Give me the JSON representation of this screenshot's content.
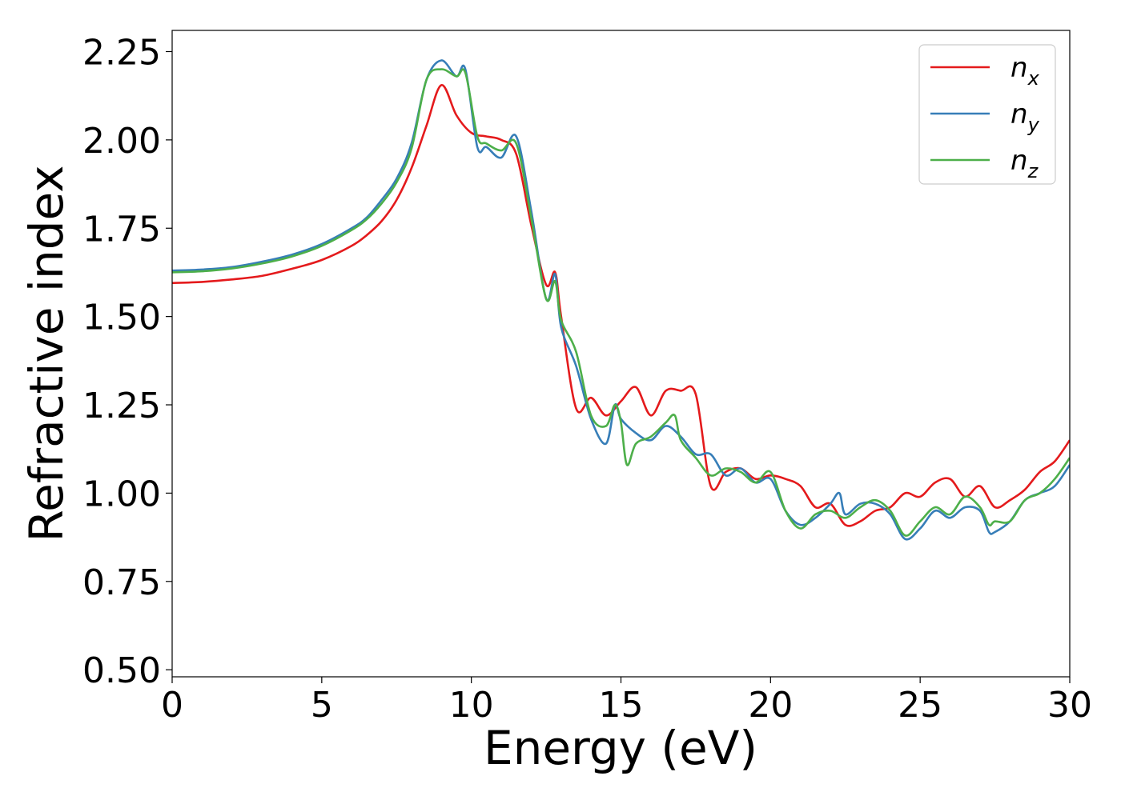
{
  "chart_data": {
    "type": "line",
    "title": "",
    "xlabel": "Energy (eV)",
    "ylabel": "Refractive index",
    "xlim": [
      0,
      30
    ],
    "ylim": [
      0.48,
      2.31
    ],
    "xticks": [
      0,
      5,
      10,
      15,
      20,
      25,
      30
    ],
    "xtick_labels": [
      "0",
      "5",
      "10",
      "15",
      "20",
      "25",
      "30"
    ],
    "yticks": [
      0.5,
      0.75,
      1.0,
      1.25,
      1.5,
      1.75,
      2.0,
      2.25
    ],
    "ytick_labels": [
      "0.50",
      "0.75",
      "1.00",
      "1.25",
      "1.50",
      "1.75",
      "2.00",
      "2.25"
    ],
    "grid": false,
    "legend_position": "top-right",
    "series": [
      {
        "name": "n",
        "subscript": "x",
        "color": "#e41a1c",
        "points": [
          [
            0,
            1.595
          ],
          [
            1,
            1.598
          ],
          [
            2,
            1.605
          ],
          [
            3,
            1.615
          ],
          [
            4,
            1.635
          ],
          [
            5,
            1.66
          ],
          [
            6,
            1.7
          ],
          [
            6.5,
            1.73
          ],
          [
            7,
            1.77
          ],
          [
            7.5,
            1.83
          ],
          [
            8,
            1.92
          ],
          [
            8.5,
            2.04
          ],
          [
            9,
            2.155
          ],
          [
            9.5,
            2.07
          ],
          [
            10,
            2.02
          ],
          [
            10.5,
            2.01
          ],
          [
            11,
            2.0
          ],
          [
            11.5,
            1.96
          ],
          [
            12,
            1.76
          ],
          [
            12.5,
            1.59
          ],
          [
            12.8,
            1.625
          ],
          [
            13,
            1.5
          ],
          [
            13.5,
            1.24
          ],
          [
            14,
            1.27
          ],
          [
            14.5,
            1.22
          ],
          [
            15,
            1.26
          ],
          [
            15.5,
            1.3
          ],
          [
            16,
            1.22
          ],
          [
            16.5,
            1.29
          ],
          [
            17,
            1.29
          ],
          [
            17.5,
            1.28
          ],
          [
            18,
            1.02
          ],
          [
            18.5,
            1.06
          ],
          [
            19,
            1.07
          ],
          [
            19.5,
            1.04
          ],
          [
            20,
            1.05
          ],
          [
            20.5,
            1.04
          ],
          [
            21,
            1.02
          ],
          [
            21.5,
            0.96
          ],
          [
            22,
            0.97
          ],
          [
            22.5,
            0.91
          ],
          [
            23,
            0.92
          ],
          [
            23.5,
            0.95
          ],
          [
            24,
            0.96
          ],
          [
            24.5,
            1.0
          ],
          [
            25,
            0.99
          ],
          [
            25.5,
            1.03
          ],
          [
            26,
            1.04
          ],
          [
            26.5,
            0.99
          ],
          [
            27,
            1.02
          ],
          [
            27.5,
            0.96
          ],
          [
            28,
            0.98
          ],
          [
            28.5,
            1.01
          ],
          [
            29,
            1.06
          ],
          [
            29.5,
            1.09
          ],
          [
            30,
            1.15
          ]
        ]
      },
      {
        "name": "n",
        "subscript": "y",
        "color": "#377eb8",
        "points": [
          [
            0,
            1.63
          ],
          [
            1,
            1.633
          ],
          [
            2,
            1.64
          ],
          [
            3,
            1.655
          ],
          [
            4,
            1.675
          ],
          [
            5,
            1.705
          ],
          [
            6,
            1.75
          ],
          [
            6.5,
            1.78
          ],
          [
            7,
            1.83
          ],
          [
            7.5,
            1.89
          ],
          [
            8,
            1.99
          ],
          [
            8.5,
            2.17
          ],
          [
            9,
            2.225
          ],
          [
            9.5,
            2.18
          ],
          [
            9.8,
            2.2
          ],
          [
            10.2,
            1.98
          ],
          [
            10.5,
            1.98
          ],
          [
            11,
            1.95
          ],
          [
            11.5,
            2.01
          ],
          [
            12,
            1.8
          ],
          [
            12.5,
            1.55
          ],
          [
            12.8,
            1.62
          ],
          [
            13,
            1.47
          ],
          [
            13.5,
            1.36
          ],
          [
            14,
            1.21
          ],
          [
            14.5,
            1.14
          ],
          [
            14.8,
            1.25
          ],
          [
            15,
            1.21
          ],
          [
            15.5,
            1.17
          ],
          [
            16,
            1.15
          ],
          [
            16.5,
            1.19
          ],
          [
            17,
            1.16
          ],
          [
            17.5,
            1.11
          ],
          [
            18,
            1.11
          ],
          [
            18.5,
            1.05
          ],
          [
            19,
            1.07
          ],
          [
            19.5,
            1.03
          ],
          [
            20,
            1.04
          ],
          [
            20.5,
            0.95
          ],
          [
            21,
            0.91
          ],
          [
            21.5,
            0.93
          ],
          [
            22,
            0.97
          ],
          [
            22.3,
            1.0
          ],
          [
            22.5,
            0.94
          ],
          [
            23,
            0.97
          ],
          [
            23.5,
            0.97
          ],
          [
            24,
            0.94
          ],
          [
            24.5,
            0.87
          ],
          [
            25,
            0.9
          ],
          [
            25.5,
            0.95
          ],
          [
            26,
            0.93
          ],
          [
            26.5,
            0.96
          ],
          [
            27,
            0.95
          ],
          [
            27.3,
            0.89
          ],
          [
            27.5,
            0.89
          ],
          [
            28,
            0.92
          ],
          [
            28.5,
            0.98
          ],
          [
            29,
            1.0
          ],
          [
            29.5,
            1.02
          ],
          [
            30,
            1.08
          ]
        ]
      },
      {
        "name": "n",
        "subscript": "z",
        "color": "#4daf4a",
        "points": [
          [
            0,
            1.625
          ],
          [
            1,
            1.628
          ],
          [
            2,
            1.636
          ],
          [
            3,
            1.65
          ],
          [
            4,
            1.67
          ],
          [
            5,
            1.7
          ],
          [
            6,
            1.745
          ],
          [
            6.5,
            1.775
          ],
          [
            7,
            1.82
          ],
          [
            7.5,
            1.88
          ],
          [
            8,
            1.975
          ],
          [
            8.5,
            2.17
          ],
          [
            9,
            2.2
          ],
          [
            9.5,
            2.18
          ],
          [
            9.8,
            2.19
          ],
          [
            10.2,
            2.01
          ],
          [
            10.5,
            1.99
          ],
          [
            11,
            1.97
          ],
          [
            11.5,
            1.99
          ],
          [
            12,
            1.78
          ],
          [
            12.5,
            1.55
          ],
          [
            12.8,
            1.6
          ],
          [
            13,
            1.49
          ],
          [
            13.5,
            1.4
          ],
          [
            14,
            1.22
          ],
          [
            14.5,
            1.19
          ],
          [
            14.8,
            1.25
          ],
          [
            15,
            1.2
          ],
          [
            15.2,
            1.08
          ],
          [
            15.5,
            1.14
          ],
          [
            16,
            1.16
          ],
          [
            16.5,
            1.2
          ],
          [
            16.8,
            1.22
          ],
          [
            17,
            1.15
          ],
          [
            17.5,
            1.1
          ],
          [
            18,
            1.05
          ],
          [
            18.5,
            1.07
          ],
          [
            19,
            1.06
          ],
          [
            19.5,
            1.03
          ],
          [
            20,
            1.06
          ],
          [
            20.5,
            0.95
          ],
          [
            21,
            0.9
          ],
          [
            21.5,
            0.94
          ],
          [
            22,
            0.95
          ],
          [
            22.5,
            0.93
          ],
          [
            23,
            0.96
          ],
          [
            23.5,
            0.98
          ],
          [
            24,
            0.95
          ],
          [
            24.5,
            0.88
          ],
          [
            25,
            0.92
          ],
          [
            25.5,
            0.96
          ],
          [
            26,
            0.94
          ],
          [
            26.5,
            0.99
          ],
          [
            27,
            0.96
          ],
          [
            27.3,
            0.91
          ],
          [
            27.5,
            0.92
          ],
          [
            28,
            0.92
          ],
          [
            28.5,
            0.98
          ],
          [
            29,
            1.0
          ],
          [
            29.5,
            1.04
          ],
          [
            30,
            1.1
          ]
        ]
      }
    ]
  }
}
